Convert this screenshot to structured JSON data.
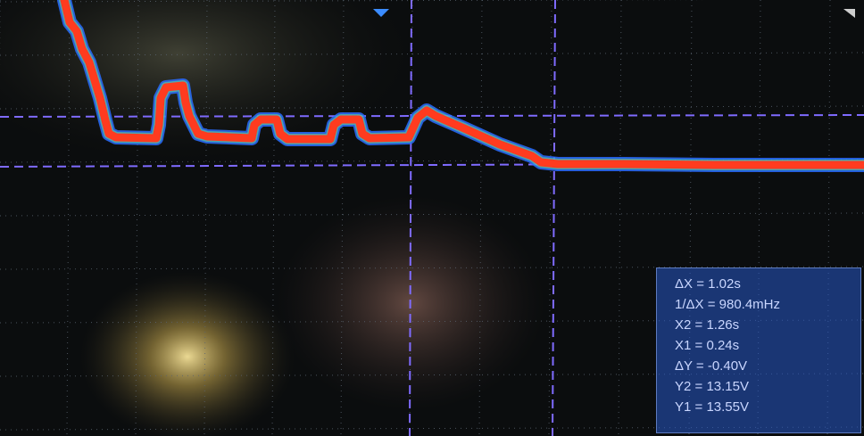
{
  "measurements": {
    "delta_x": "ΔX = 1.02s",
    "inv_delta_x": "1/ΔX = 980.4mHz",
    "x2": "X2 = 1.26s",
    "x1": "X1 = 0.24s",
    "delta_y": "ΔY = -0.40V",
    "y2": "Y2 = 13.15V",
    "y1": "Y1 = 13.55V"
  },
  "colors": {
    "background": "#0b0d0e",
    "grid": "#5a6470",
    "cursor": "#7f6bff",
    "trace": "#ff3b1f",
    "trace_edge": "#2a6dff",
    "panel": "#2a5ac8"
  }
}
